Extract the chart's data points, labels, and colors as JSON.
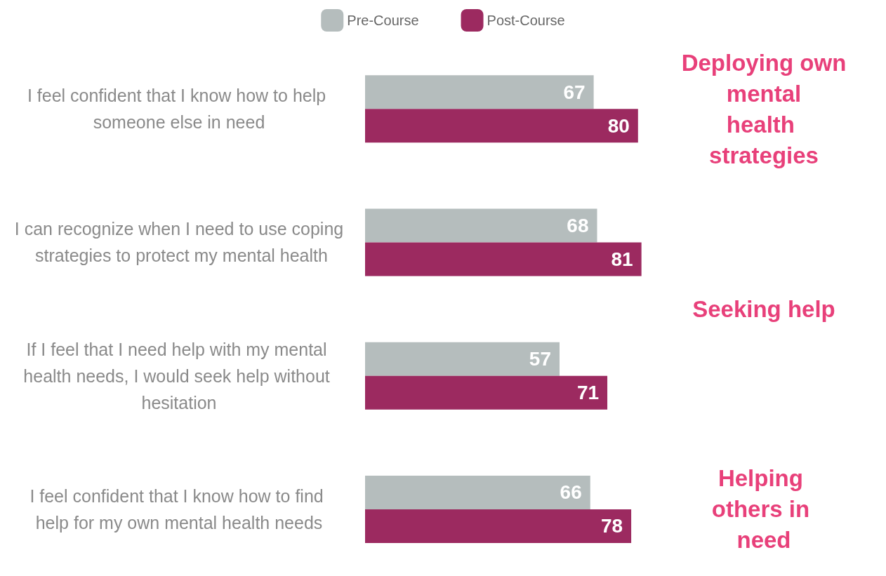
{
  "chart_data": {
    "type": "bar",
    "orientation": "horizontal",
    "categories": [
      "I feel confident that I know how to help someone else in need",
      "I can recognize when I need to use coping strategies to protect my mental health",
      "If I feel that I need help with my mental health needs, I would seek help without hesitation",
      "I feel confident that I know how to find help for my own mental health needs"
    ],
    "series": [
      {
        "name": "Pre-Course",
        "color": "#b5bdbd",
        "values": [
          67,
          68,
          57,
          66
        ]
      },
      {
        "name": "Post-Course",
        "color": "#9c2a60",
        "values": [
          80,
          81,
          71,
          78
        ]
      }
    ],
    "data_labels": true,
    "legend": "top",
    "tick_labels": "y",
    "annotations": [
      "Deploying own mental health strategies",
      "Seeking help",
      "Helping others in need"
    ]
  }
}
